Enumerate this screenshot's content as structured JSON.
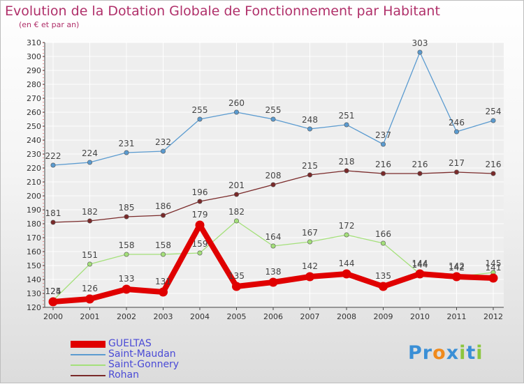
{
  "title": "Evolution de la Dotation Globale de Fonctionnement par Habitant",
  "subtitle": "(en € et par an)",
  "logo": {
    "letters": [
      "P",
      "r",
      "o",
      "x",
      "i",
      "t",
      "i"
    ],
    "colors": [
      "#3a8fd6",
      "#3a8fd6",
      "#f08a1c",
      "#3a8fd6",
      "#8cc63f",
      "#3a8fd6",
      "#8cc63f"
    ]
  },
  "chart_data": {
    "type": "line",
    "x": [
      "2000",
      "2001",
      "2002",
      "2003",
      "2004",
      "2005",
      "2006",
      "2007",
      "2008",
      "2009",
      "2010",
      "2011",
      "2012"
    ],
    "ylim": [
      120,
      310
    ],
    "yticks": [
      120,
      130,
      140,
      150,
      160,
      170,
      180,
      190,
      200,
      210,
      220,
      230,
      240,
      250,
      260,
      270,
      280,
      290,
      300,
      310
    ],
    "grid": true,
    "legend_position": "bottom-left",
    "series": [
      {
        "name": "GUELTAS",
        "color": "#e00000",
        "highlight": true,
        "values": [
          124,
          126,
          133,
          131,
          179,
          135,
          138,
          142,
          144,
          135,
          144,
          142,
          141
        ]
      },
      {
        "name": "Saint-Maudan",
        "color": "#5b9bd0",
        "values": [
          222,
          224,
          231,
          232,
          255,
          260,
          255,
          248,
          251,
          237,
          303,
          246,
          254
        ]
      },
      {
        "name": "Saint-Gonnery",
        "color": "#a4e07a",
        "values": [
          125,
          151,
          158,
          158,
          159,
          182,
          164,
          167,
          172,
          166,
          144,
          142,
          145
        ]
      },
      {
        "name": "Rohan",
        "color": "#7a2a2a",
        "values": [
          181,
          182,
          185,
          186,
          196,
          201,
          208,
          215,
          218,
          216,
          216,
          217,
          216
        ]
      }
    ]
  }
}
